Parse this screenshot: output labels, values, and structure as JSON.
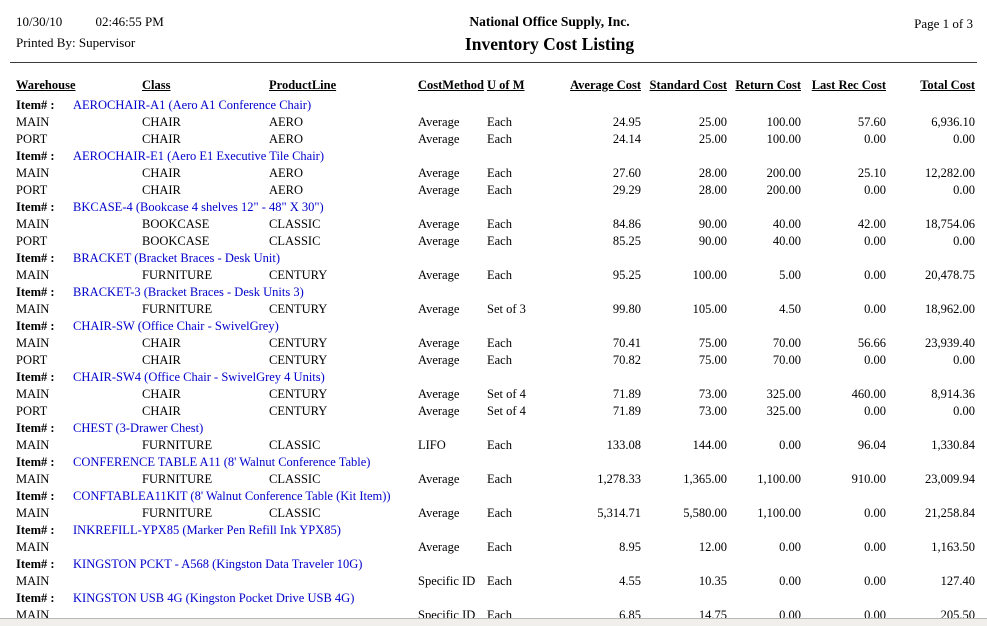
{
  "colors": {
    "item_link_blue": "#0000cc",
    "rule_gray": "#3a3a3a",
    "bottom_strip": "#f0efec"
  },
  "header": {
    "date": "10/30/10",
    "time": "02:46:55 PM",
    "printed_by": "Printed By: Supervisor",
    "company": "National Office Supply, Inc.",
    "report_title": "Inventory Cost Listing",
    "page_indicator": "Page 1 of 3"
  },
  "table": {
    "item_label": "Item# :",
    "columns": [
      "Warehouse",
      "Class",
      "ProductLine",
      "CostMethod",
      "U of M",
      "Average Cost",
      "Standard Cost",
      "Return Cost",
      "Last Rec Cost",
      "Total Cost"
    ],
    "groups": [
      {
        "item": "AEROCHAIR-A1 (Aero A1 Conference Chair)",
        "rows": [
          [
            "MAIN",
            "CHAIR",
            "AERO",
            "Average",
            "Each",
            "24.95",
            "25.00",
            "100.00",
            "57.60",
            "6,936.10"
          ],
          [
            "PORT",
            "CHAIR",
            "AERO",
            "Average",
            "Each",
            "24.14",
            "25.00",
            "100.00",
            "0.00",
            "0.00"
          ]
        ]
      },
      {
        "item": "AEROCHAIR-E1 (Aero E1 Executive Tile Chair)",
        "rows": [
          [
            "MAIN",
            "CHAIR",
            "AERO",
            "Average",
            "Each",
            "27.60",
            "28.00",
            "200.00",
            "25.10",
            "12,282.00"
          ],
          [
            "PORT",
            "CHAIR",
            "AERO",
            "Average",
            "Each",
            "29.29",
            "28.00",
            "200.00",
            "0.00",
            "0.00"
          ]
        ]
      },
      {
        "item": "BKCASE-4 (Bookcase 4 shelves 12\" - 48\" X 30\")",
        "rows": [
          [
            "MAIN",
            "BOOKCASE",
            "CLASSIC",
            "Average",
            "Each",
            "84.86",
            "90.00",
            "40.00",
            "42.00",
            "18,754.06"
          ],
          [
            "PORT",
            "BOOKCASE",
            "CLASSIC",
            "Average",
            "Each",
            "85.25",
            "90.00",
            "40.00",
            "0.00",
            "0.00"
          ]
        ]
      },
      {
        "item": "BRACKET (Bracket Braces - Desk Unit)",
        "rows": [
          [
            "MAIN",
            "FURNITURE",
            "CENTURY",
            "Average",
            "Each",
            "95.25",
            "100.00",
            "5.00",
            "0.00",
            "20,478.75"
          ]
        ]
      },
      {
        "item": "BRACKET-3 (Bracket Braces - Desk Units 3)",
        "rows": [
          [
            "MAIN",
            "FURNITURE",
            "CENTURY",
            "Average",
            "Set of 3",
            "99.80",
            "105.00",
            "4.50",
            "0.00",
            "18,962.00"
          ]
        ]
      },
      {
        "item": "CHAIR-SW (Office Chair - SwivelGrey)",
        "rows": [
          [
            "MAIN",
            "CHAIR",
            "CENTURY",
            "Average",
            "Each",
            "70.41",
            "75.00",
            "70.00",
            "56.66",
            "23,939.40"
          ],
          [
            "PORT",
            "CHAIR",
            "CENTURY",
            "Average",
            "Each",
            "70.82",
            "75.00",
            "70.00",
            "0.00",
            "0.00"
          ]
        ]
      },
      {
        "item": "CHAIR-SW4 (Office Chair - SwivelGrey 4 Units)",
        "rows": [
          [
            "MAIN",
            "CHAIR",
            "CENTURY",
            "Average",
            "Set of 4",
            "71.89",
            "73.00",
            "325.00",
            "460.00",
            "8,914.36"
          ],
          [
            "PORT",
            "CHAIR",
            "CENTURY",
            "Average",
            "Set of 4",
            "71.89",
            "73.00",
            "325.00",
            "0.00",
            "0.00"
          ]
        ]
      },
      {
        "item": "CHEST (3-Drawer Chest)",
        "rows": [
          [
            "MAIN",
            "FURNITURE",
            "CLASSIC",
            "LIFO",
            "Each",
            "133.08",
            "144.00",
            "0.00",
            "96.04",
            "1,330.84"
          ]
        ]
      },
      {
        "item": "CONFERENCE TABLE A11 (8' Walnut Conference Table)",
        "rows": [
          [
            "MAIN",
            "FURNITURE",
            "CLASSIC",
            "Average",
            "Each",
            "1,278.33",
            "1,365.00",
            "1,100.00",
            "910.00",
            "23,009.94"
          ]
        ]
      },
      {
        "item": "CONFTABLEA11KIT (8' Walnut Conference Table (Kit Item))",
        "rows": [
          [
            "MAIN",
            "FURNITURE",
            "CLASSIC",
            "Average",
            "Each",
            "5,314.71",
            "5,580.00",
            "1,100.00",
            "0.00",
            "21,258.84"
          ]
        ]
      },
      {
        "item": "INKREFILL-YPX85 (Marker Pen Refill Ink YPX85)",
        "rows": [
          [
            "MAIN",
            "",
            "",
            "Average",
            "Each",
            "8.95",
            "12.00",
            "0.00",
            "0.00",
            "1,163.50"
          ]
        ]
      },
      {
        "item": "KINGSTON PCKT - A568 (Kingston Data Traveler 10G)",
        "rows": [
          [
            "MAIN",
            "",
            "",
            "Specific ID",
            "Each",
            "4.55",
            "10.35",
            "0.00",
            "0.00",
            "127.40"
          ]
        ]
      },
      {
        "item": "KINGSTON USB 4G (Kingston Pocket Drive USB 4G)",
        "rows": [
          [
            "MAIN",
            "",
            "",
            "Specific ID",
            "Each",
            "6.85",
            "14.75",
            "0.00",
            "0.00",
            "205.50"
          ]
        ]
      }
    ]
  }
}
